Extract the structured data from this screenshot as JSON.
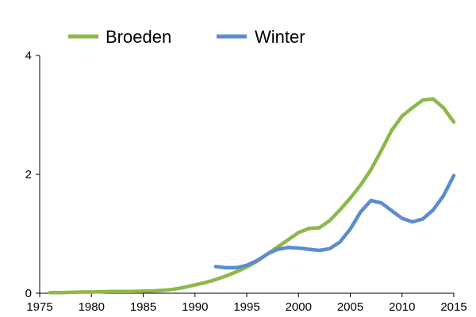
{
  "chart_data": {
    "type": "line",
    "xlim": [
      1975,
      2015
    ],
    "ylim": [
      0,
      4
    ],
    "x_ticks": [
      "1975",
      "1980",
      "1985",
      "1990",
      "1995",
      "2000",
      "2005",
      "2010",
      "2015"
    ],
    "y_ticks": [
      "0",
      "2",
      "4"
    ],
    "grid": false,
    "legend_position": "top",
    "series": [
      {
        "name": "Broeden",
        "color": "#8db84a",
        "x": [
          1976,
          1977,
          1978,
          1979,
          1980,
          1981,
          1982,
          1983,
          1984,
          1985,
          1986,
          1987,
          1988,
          1989,
          1990,
          1991,
          1992,
          1993,
          1994,
          1995,
          1996,
          1997,
          1998,
          1999,
          2000,
          2001,
          2002,
          2003,
          2004,
          2005,
          2006,
          2007,
          2008,
          2009,
          2010,
          2011,
          2012,
          2013,
          2014,
          2015
        ],
        "y": [
          0.01,
          0.01,
          0.015,
          0.02,
          0.02,
          0.025,
          0.03,
          0.03,
          0.03,
          0.035,
          0.04,
          0.05,
          0.07,
          0.1,
          0.14,
          0.18,
          0.23,
          0.29,
          0.36,
          0.44,
          0.54,
          0.66,
          0.78,
          0.9,
          1.02,
          1.09,
          1.1,
          1.22,
          1.4,
          1.6,
          1.82,
          2.08,
          2.4,
          2.74,
          2.98,
          3.12,
          3.25,
          3.27,
          3.12,
          2.88
        ]
      },
      {
        "name": "Winter",
        "color": "#5b8ccf",
        "x": [
          1992,
          1993,
          1994,
          1995,
          1996,
          1997,
          1998,
          1999,
          2000,
          2001,
          2002,
          2003,
          2004,
          2005,
          2006,
          2007,
          2008,
          2009,
          2010,
          2011,
          2012,
          2013,
          2014,
          2015
        ],
        "y": [
          0.45,
          0.43,
          0.43,
          0.47,
          0.55,
          0.66,
          0.74,
          0.77,
          0.76,
          0.74,
          0.72,
          0.75,
          0.86,
          1.08,
          1.37,
          1.56,
          1.52,
          1.39,
          1.26,
          1.2,
          1.25,
          1.4,
          1.64,
          1.98
        ]
      }
    ]
  }
}
